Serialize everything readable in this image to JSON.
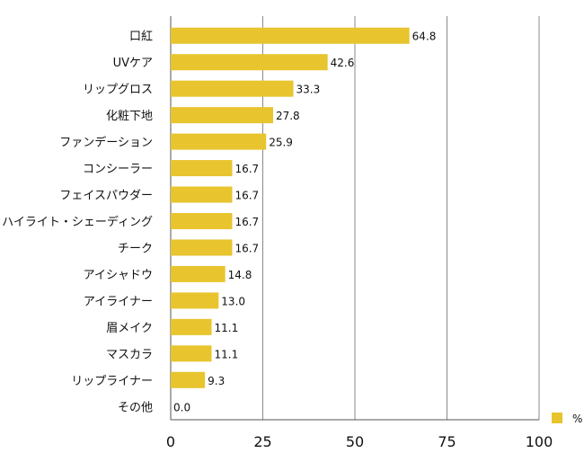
{
  "chart_data": {
    "type": "bar",
    "orientation": "horizontal",
    "categories": [
      "口紅",
      "UVケア",
      "リップグロス",
      "化粧下地",
      "ファンデーション",
      "コンシーラー",
      "フェイスパウダー",
      "ハイライト・シェーディング",
      "チーク",
      "アイシャドウ",
      "アイライナー",
      "眉メイク",
      "マスカラ",
      "リップライナー",
      "その他"
    ],
    "series": [
      {
        "name": "%",
        "values": [
          64.8,
          42.6,
          33.3,
          27.8,
          25.9,
          16.7,
          16.7,
          16.7,
          16.7,
          14.8,
          13.0,
          11.1,
          11.1,
          9.3,
          0.0
        ]
      }
    ],
    "value_labels": [
      "64.8",
      "42.6",
      "33.3",
      "27.8",
      "25.9",
      "16.7",
      "16.7",
      "16.7",
      "16.7",
      "14.8",
      "13.0",
      "11.1",
      "11.1",
      "9.3",
      "0.0"
    ],
    "xlim": [
      0,
      100
    ],
    "xticks": [
      0,
      25,
      50,
      75,
      100
    ],
    "xtick_labels": [
      "0",
      "25",
      "50",
      "75",
      "100"
    ],
    "grid": true,
    "legend_position": "bottom-right",
    "colors": {
      "bar": "#E8C42E",
      "grid": "#8a8a8a",
      "axis": "#555555"
    }
  }
}
